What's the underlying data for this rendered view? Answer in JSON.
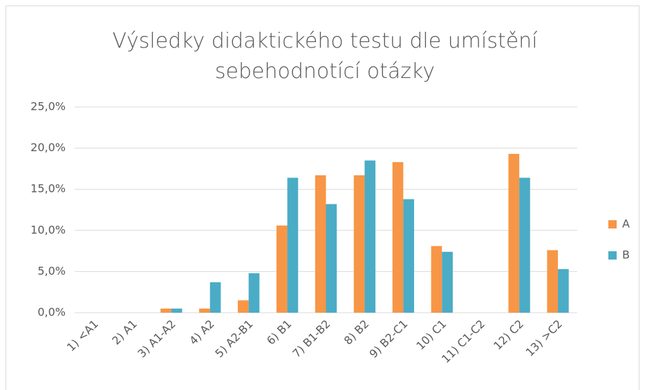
{
  "chart_data": {
    "type": "bar",
    "title": "Výsledky didaktického testu dle umístění sebehodnotící otázky",
    "categories": [
      "1) <A1",
      "2) A1",
      "3) A1-A2",
      "4) A2",
      "5) A2-B1",
      "6) B1",
      "7) B1-B2",
      "8) B2",
      "9) B2-C1",
      "10) C1",
      "11) C1-C2",
      "12) C2",
      "13) >C2"
    ],
    "series": [
      {
        "name": "A",
        "color": "#f79646",
        "values": [
          0,
          0,
          0.5,
          0.5,
          1.5,
          10.6,
          16.7,
          16.7,
          18.3,
          8.1,
          0,
          19.3,
          7.6
        ]
      },
      {
        "name": "B",
        "color": "#4bacc6",
        "values": [
          0,
          0,
          0.5,
          3.7,
          4.8,
          16.4,
          13.2,
          18.5,
          13.8,
          7.4,
          0,
          16.4,
          5.3
        ]
      }
    ],
    "ylim": [
      0,
      25
    ],
    "yticks": [
      {
        "value": 0,
        "label": "0,0%"
      },
      {
        "value": 5,
        "label": "5,0%"
      },
      {
        "value": 10,
        "label": "10,0%"
      },
      {
        "value": 15,
        "label": "15,0%"
      },
      {
        "value": 20,
        "label": "20,0%"
      },
      {
        "value": 25,
        "label": "25,0%"
      }
    ],
    "grid": true,
    "legend": "right"
  }
}
